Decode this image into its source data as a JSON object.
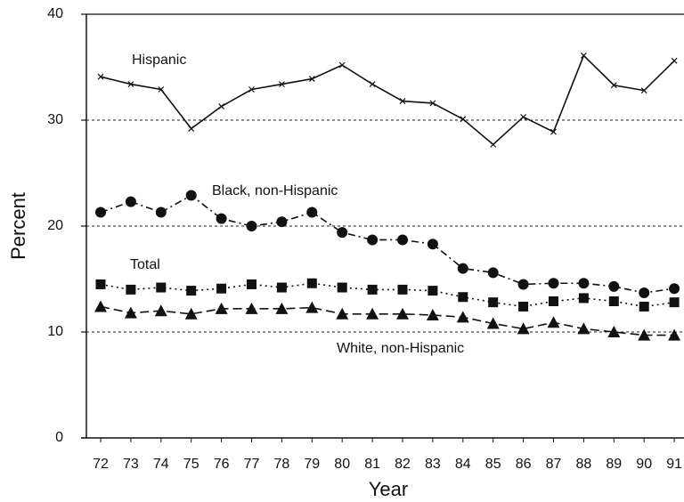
{
  "chart_data": {
    "type": "line",
    "x_label": "Year",
    "y_label": "Percent",
    "categories": [
      "72",
      "73",
      "74",
      "75",
      "76",
      "77",
      "78",
      "79",
      "80",
      "81",
      "82",
      "83",
      "84",
      "85",
      "86",
      "87",
      "88",
      "89",
      "90",
      "91"
    ],
    "ylim": [
      0,
      40
    ],
    "yticks": [
      0,
      10,
      20,
      30,
      40
    ],
    "grid": true,
    "series": [
      {
        "name": "Hispanic",
        "color": "#111111",
        "marker": "x",
        "line_style": "solid",
        "values": [
          34.1,
          33.4,
          32.9,
          29.2,
          31.3,
          32.9,
          33.4,
          33.9,
          35.2,
          33.4,
          31.8,
          31.6,
          30.1,
          27.7,
          30.3,
          28.9,
          36.1,
          33.3,
          32.8,
          35.6
        ]
      },
      {
        "name": "Black, non-Hispanic",
        "color": "#111111",
        "marker": "circle",
        "line_style": "dashdot",
        "values": [
          21.3,
          22.3,
          21.3,
          22.9,
          20.7,
          20.0,
          20.4,
          21.3,
          19.4,
          18.7,
          18.7,
          18.3,
          16.0,
          15.6,
          14.5,
          14.6,
          14.6,
          14.3,
          13.7,
          14.1
        ]
      },
      {
        "name": "Total",
        "color": "#111111",
        "marker": "square",
        "line_style": "dotted",
        "values": [
          14.5,
          14.0,
          14.2,
          13.9,
          14.1,
          14.5,
          14.2,
          14.6,
          14.2,
          14.0,
          14.0,
          13.9,
          13.3,
          12.8,
          12.4,
          12.9,
          13.2,
          12.9,
          12.4,
          12.8
        ]
      },
      {
        "name": "White, non-Hispanic",
        "color": "#111111",
        "marker": "triangle",
        "line_style": "dashed",
        "values": [
          12.4,
          11.8,
          12.0,
          11.7,
          12.2,
          12.2,
          12.2,
          12.3,
          11.7,
          11.7,
          11.7,
          11.6,
          11.4,
          10.8,
          10.3,
          10.9,
          10.3,
          10.0,
          9.7,
          9.7
        ]
      }
    ]
  }
}
